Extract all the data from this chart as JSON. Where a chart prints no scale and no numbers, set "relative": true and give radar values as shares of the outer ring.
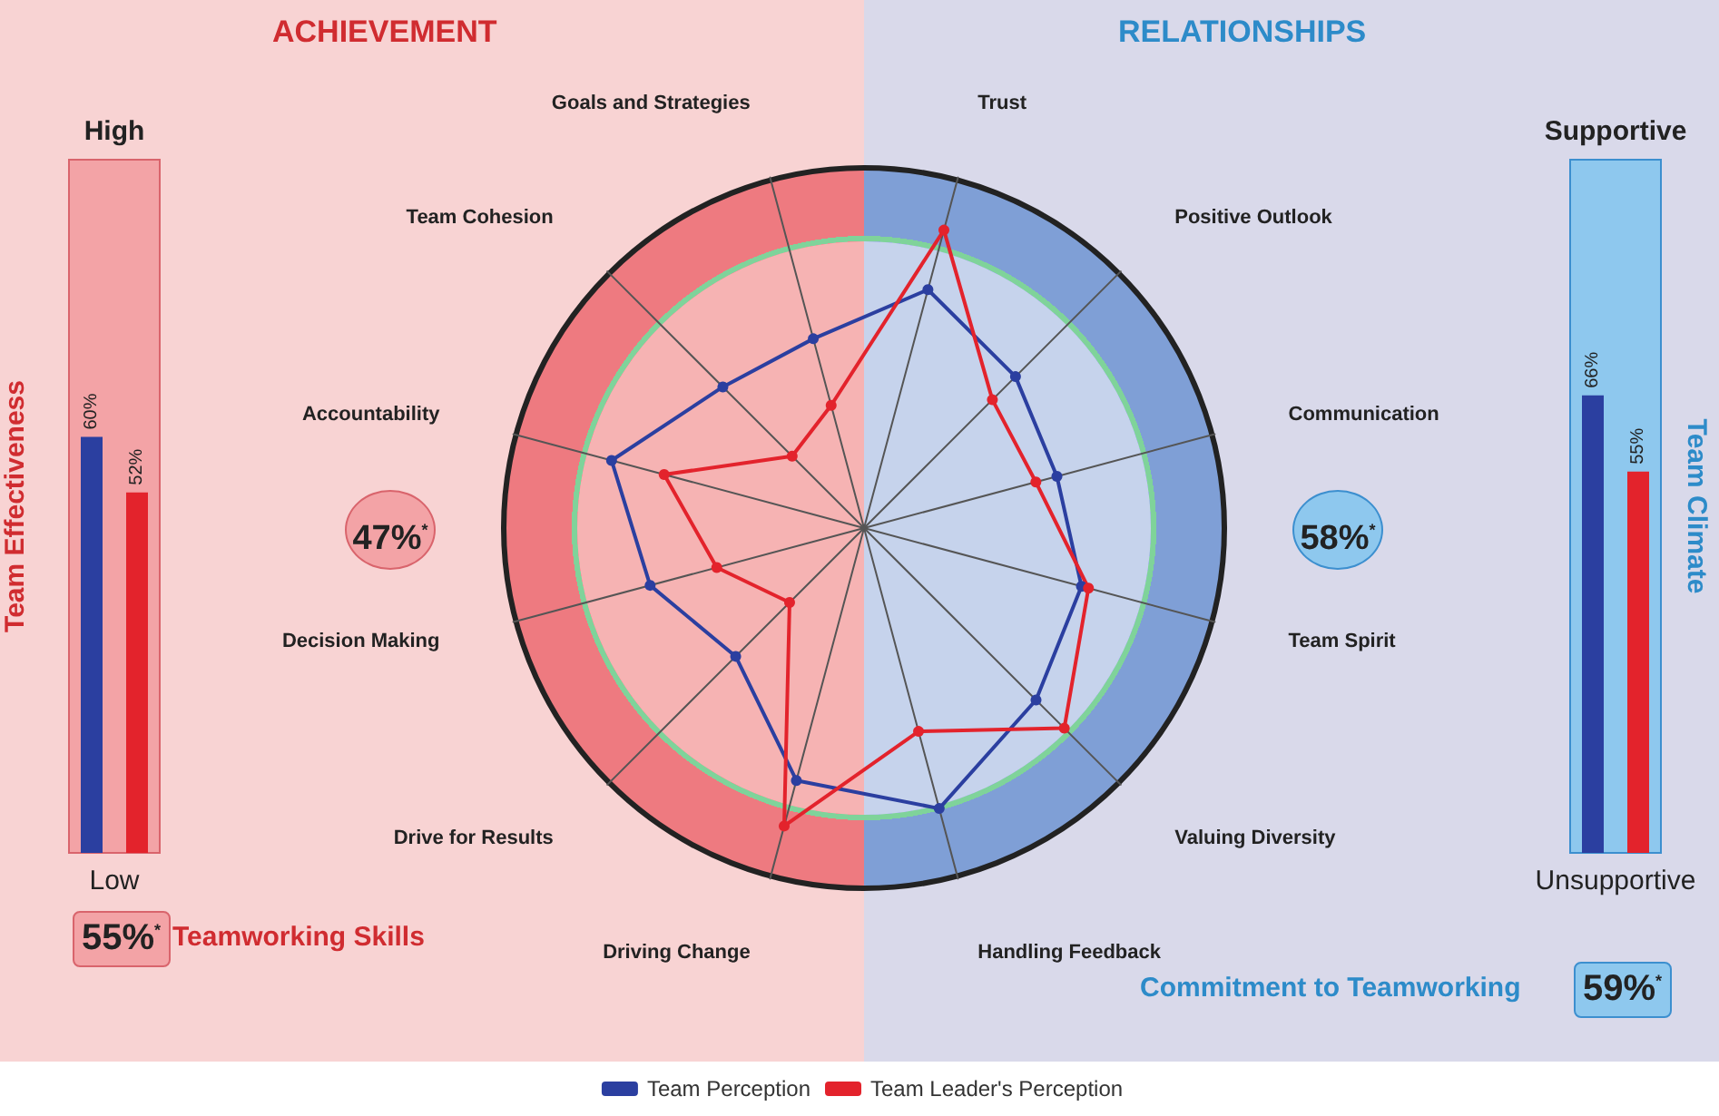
{
  "chart_data": [
    {
      "type": "bar",
      "categories": [
        null,
        null
      ],
      "values": [
        60,
        52
      ],
      "colors": [
        "#2b3fa0",
        "#e3232c"
      ],
      "value_labels": [
        "60%",
        "52%"
      ],
      "ylabel": "Team Effectiveness",
      "ylim": [
        0,
        100
      ],
      "annotations": [
        "High",
        "Low",
        "55%$^{*}$",
        "Teamworking Skills"
      ]
    },
    {
      "type": "radar",
      "categories": [
        "Trust",
        "Positive Outlook",
        "Communication",
        "Team Spirit",
        "Valuing Diversity",
        "Handling Feedback",
        "Driving Change",
        "Drive for Results",
        "Decision Making",
        "Accountability",
        "Team Cohesion",
        "Goals and Strategies"
      ],
      "relative": true,
      "legend": "bottom",
      "marker": "circle",
      "series": [
        {
          "name": "Team Perception",
          "color": "#2b3fa0",
          "values": [
            0.68,
            0.59,
            0.55,
            0.62,
            0.67,
            0.8,
            0.72,
            0.5,
            0.61,
            0.72,
            0.55,
            0.54
          ]
        },
        {
          "name": "Team Leader's Perception",
          "color": "#e3232c",
          "values": [
            0.85,
            0.5,
            0.49,
            0.64,
            0.78,
            0.58,
            0.85,
            0.29,
            0.42,
            0.57,
            0.28,
            0.35
          ]
        }
      ],
      "annotations": [
        "ACHIEVEMENT",
        "RELATIONSHIPS",
        "47%$^{*}$",
        "58%$^{*}$"
      ]
    },
    {
      "type": "bar",
      "categories": [
        null,
        null
      ],
      "values": [
        66,
        55
      ],
      "colors": [
        "#2b3fa0",
        "#e3232c"
      ],
      "value_labels": [
        "66%",
        "55%"
      ],
      "ylabel": "Team Climate",
      "ylim": [
        0,
        100
      ],
      "annotations": [
        "Supportive",
        "Unsupportive",
        "59%$^{*}$",
        "Commitment to Teamworking"
      ]
    }
  ]
}
